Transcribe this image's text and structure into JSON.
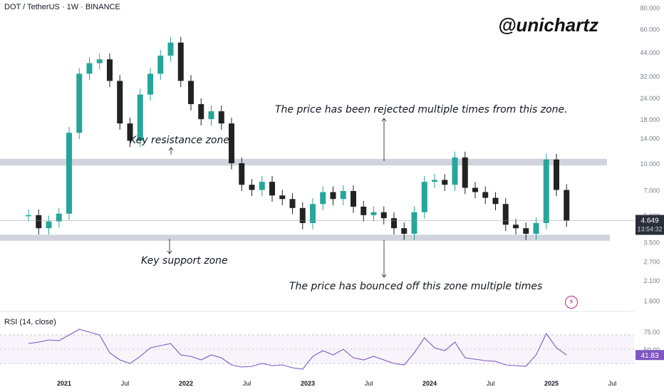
{
  "header": {
    "symbol_line": "DOT / TetherUS · 1W · BINANCE"
  },
  "watermark": "@unichartz",
  "annotations": {
    "resistance_label": "Key resistance zone",
    "support_label": "Key support zone",
    "rejected_note": "The price has been rejected multiple times from this zone.",
    "bounced_note": "The price has bounced off this zone multiple times"
  },
  "icons": {
    "bolt": "lightning-bolt-icon"
  },
  "colors": {
    "up": "#26a69a",
    "down": "#222222",
    "zone": "#d1d4dc",
    "rsi_line": "#7e57c2",
    "price_tag": "#2a2e39"
  },
  "chart_data": {
    "type": "line",
    "title": "DOT / TetherUS · 1W · BINANCE",
    "price_scale": "log",
    "y_ticks": [
      "80.000",
      "60.000",
      "44.000",
      "32.000",
      "24.000",
      "18.000",
      "14.000",
      "10.000",
      "7.000",
      "5.000",
      "3.500",
      "2.700",
      "2.100",
      "1.600"
    ],
    "x_ticks": [
      "2021",
      "Jul",
      "2022",
      "Jul",
      "2023",
      "Jul",
      "2024",
      "Jul",
      "2025",
      "Jul"
    ],
    "current_price": "4.649",
    "countdown": "13:54:32",
    "resistance_zone": [
      9.7,
      10.6
    ],
    "support_zone": [
      3.55,
      3.85
    ],
    "series": [
      {
        "name": "DOT / TetherUS",
        "x": [
          "2020-09",
          "2020-10",
          "2020-11",
          "2020-12",
          "2021-01",
          "2021-02",
          "2021-03",
          "2021-04",
          "2021-05",
          "2021-06",
          "2021-07",
          "2021-08",
          "2021-09",
          "2021-10",
          "2021-11",
          "2021-12",
          "2022-01",
          "2022-02",
          "2022-03",
          "2022-04",
          "2022-05",
          "2022-06",
          "2022-07",
          "2022-08",
          "2022-09",
          "2022-10",
          "2022-11",
          "2022-12",
          "2023-01",
          "2023-02",
          "2023-03",
          "2023-04",
          "2023-05",
          "2023-06",
          "2023-07",
          "2023-08",
          "2023-09",
          "2023-10",
          "2023-11",
          "2023-12",
          "2024-01",
          "2024-02",
          "2024-03",
          "2024-04",
          "2024-05",
          "2024-06",
          "2024-07",
          "2024-08",
          "2024-09",
          "2024-10",
          "2024-11",
          "2024-12",
          "2025-01",
          "2025-02"
        ],
        "values": [
          5.0,
          4.2,
          4.6,
          5.1,
          15.0,
          33.0,
          38.0,
          40.0,
          30.0,
          17.0,
          13.5,
          25.0,
          33.0,
          42.0,
          50.0,
          30.0,
          22.0,
          18.0,
          20.0,
          17.0,
          10.0,
          7.5,
          7.0,
          7.8,
          6.5,
          6.2,
          5.5,
          4.5,
          5.8,
          6.8,
          6.2,
          6.9,
          5.6,
          5.0,
          5.2,
          4.8,
          4.2,
          3.9,
          5.2,
          7.8,
          8.0,
          7.5,
          10.8,
          7.2,
          6.8,
          6.3,
          5.8,
          4.4,
          4.2,
          3.9,
          4.5,
          10.5,
          7.0,
          4.65
        ]
      }
    ]
  },
  "rsi": {
    "title": "RSI (14, close)",
    "y_ticks": [
      "75.00",
      "50.00"
    ],
    "current": "41.83",
    "bands": [
      70,
      30
    ],
    "values": [
      58,
      60,
      63,
      62,
      70,
      78,
      74,
      70,
      45,
      35,
      30,
      40,
      52,
      55,
      58,
      42,
      40,
      35,
      42,
      38,
      28,
      25,
      26,
      30,
      27,
      28,
      24,
      22,
      40,
      48,
      42,
      50,
      38,
      35,
      40,
      35,
      30,
      28,
      45,
      66,
      52,
      48,
      60,
      38,
      36,
      34,
      33,
      28,
      27,
      26,
      42,
      72,
      52,
      41.83
    ]
  }
}
